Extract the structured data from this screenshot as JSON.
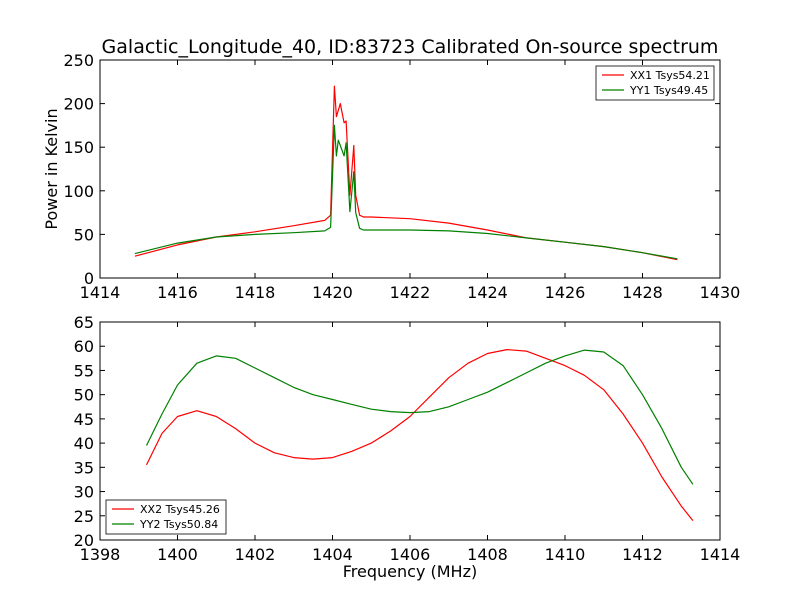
{
  "chart_data": [
    {
      "type": "line",
      "title": "Galactic_Longitude_40, ID:83723 Calibrated On-source spectrum",
      "xlabel": "",
      "ylabel": "Power in Kelvin",
      "xlim": [
        1414,
        1430
      ],
      "ylim": [
        0,
        250
      ],
      "xticks": [
        "1414",
        "1416",
        "1418",
        "1420",
        "1422",
        "1424",
        "1426",
        "1428",
        "1430"
      ],
      "yticks": [
        "0",
        "50",
        "100",
        "150",
        "200",
        "250"
      ],
      "legend_position": "top-right",
      "series": [
        {
          "name": "XX1 Tsys54.21",
          "color": "#ff0000",
          "x": [
            1414.9,
            1416,
            1417,
            1418,
            1419,
            1419.8,
            1419.95,
            1420.05,
            1420.1,
            1420.2,
            1420.3,
            1420.35,
            1420.45,
            1420.55,
            1420.6,
            1420.7,
            1420.8,
            1421,
            1422,
            1423,
            1424,
            1425,
            1426,
            1427,
            1428,
            1428.9
          ],
          "y": [
            25,
            38,
            47,
            53,
            60,
            66,
            72,
            220,
            185,
            200,
            178,
            180,
            95,
            152,
            95,
            72,
            70,
            70,
            68,
            63,
            55,
            46,
            41,
            36,
            29,
            21
          ]
        },
        {
          "name": "YY1 Tsys49.45",
          "color": "#008000",
          "x": [
            1414.9,
            1416,
            1417,
            1418,
            1419,
            1419.8,
            1419.95,
            1420.05,
            1420.1,
            1420.15,
            1420.2,
            1420.3,
            1420.35,
            1420.45,
            1420.55,
            1420.6,
            1420.7,
            1420.8,
            1421,
            1422,
            1423,
            1424,
            1425,
            1426,
            1427,
            1428,
            1428.9
          ],
          "y": [
            28,
            40,
            47,
            50,
            52,
            54,
            58,
            175,
            140,
            158,
            152,
            140,
            155,
            76,
            122,
            75,
            57,
            55,
            55,
            55,
            54,
            51,
            46,
            41,
            36,
            29,
            22
          ]
        }
      ]
    },
    {
      "type": "line",
      "title": "",
      "xlabel": "Frequency (MHz)",
      "ylabel": "",
      "xlim": [
        1398,
        1414
      ],
      "ylim": [
        20,
        65
      ],
      "xticks": [
        "1398",
        "1400",
        "1402",
        "1404",
        "1406",
        "1408",
        "1410",
        "1412",
        "1414"
      ],
      "yticks": [
        "20",
        "25",
        "30",
        "35",
        "40",
        "45",
        "50",
        "55",
        "60",
        "65"
      ],
      "legend_position": "bottom-left",
      "series": [
        {
          "name": "XX2 Tsys45.26",
          "color": "#ff0000",
          "x": [
            1399.2,
            1399.6,
            1400,
            1400.5,
            1401,
            1401.5,
            1402,
            1402.5,
            1403,
            1403.5,
            1404,
            1404.5,
            1405,
            1405.5,
            1406,
            1406.5,
            1407,
            1407.5,
            1408,
            1408.5,
            1409,
            1409.5,
            1410,
            1410.5,
            1411,
            1411.5,
            1412,
            1412.5,
            1413,
            1413.3
          ],
          "y": [
            35.5,
            42,
            45.5,
            46.7,
            45.5,
            43,
            40,
            38,
            37,
            36.7,
            37,
            38.3,
            40,
            42.5,
            45.5,
            49.5,
            53.5,
            56.5,
            58.5,
            59.3,
            59,
            57.5,
            56,
            54,
            51,
            46,
            40,
            33,
            27,
            24
          ]
        },
        {
          "name": "YY2 Tsys50.84",
          "color": "#008000",
          "x": [
            1399.2,
            1399.6,
            1400,
            1400.5,
            1401,
            1401.5,
            1402,
            1402.5,
            1403,
            1403.5,
            1404,
            1404.5,
            1405,
            1405.5,
            1406,
            1406.5,
            1407,
            1407.5,
            1408,
            1408.5,
            1409,
            1409.5,
            1410,
            1410.5,
            1411,
            1411.5,
            1412,
            1412.5,
            1413,
            1413.3
          ],
          "y": [
            39.5,
            46,
            52,
            56.5,
            58,
            57.5,
            55.5,
            53.5,
            51.5,
            50,
            49,
            48,
            47,
            46.5,
            46.3,
            46.5,
            47.5,
            49,
            50.5,
            52.5,
            54.5,
            56.5,
            58,
            59.2,
            58.8,
            56,
            50,
            43,
            35,
            31.5
          ]
        }
      ]
    }
  ]
}
